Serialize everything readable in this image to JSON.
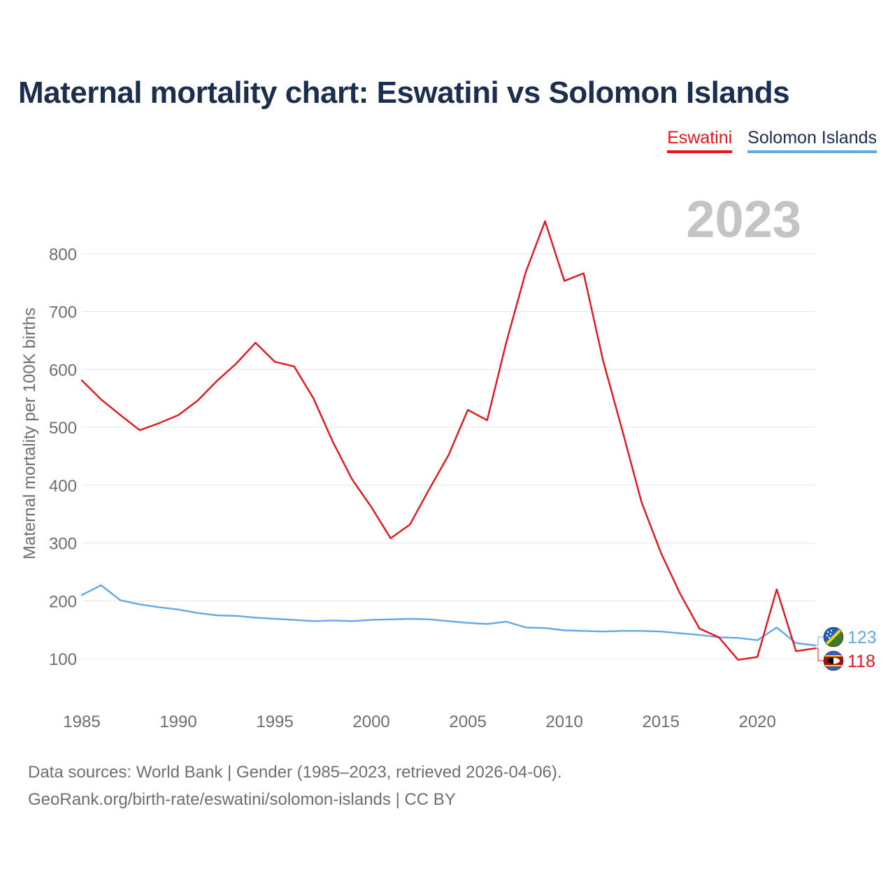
{
  "title": "Maternal mortality chart: Eswatini vs Solomon Islands",
  "legend": {
    "eswatini": "Eswatini",
    "solomon": "Solomon Islands"
  },
  "year_label": "2023",
  "footer": {
    "line1": "Data sources: World Bank | Gender (1985–2023, retrieved 2026-04-06).",
    "line2": "GeoRank.org/birth-rate/eswatini/solomon-islands | CC BY"
  },
  "colors": {
    "eswatini": "#e8141c",
    "solomon": "#63a8e6",
    "title": "#1b2e4e",
    "grid": "#e5e5e5",
    "axis_text": "#6e6e6e",
    "year_label": "#c4c4c4"
  },
  "chart_data": {
    "type": "line",
    "ylabel": "Maternal mortality per 100K births",
    "xlabel": "",
    "xlim": [
      1985,
      2023
    ],
    "ylim": [
      30,
      900
    ],
    "x_ticks": [
      1985,
      1990,
      1995,
      2000,
      2005,
      2010,
      2015,
      2020
    ],
    "y_ticks": [
      100,
      200,
      300,
      400,
      500,
      600,
      700,
      800
    ],
    "x": [
      1985,
      1986,
      1987,
      1988,
      1989,
      1990,
      1991,
      1992,
      1993,
      1994,
      1995,
      1996,
      1997,
      1998,
      1999,
      2000,
      2001,
      2002,
      2003,
      2004,
      2005,
      2006,
      2007,
      2008,
      2009,
      2010,
      2011,
      2012,
      2013,
      2014,
      2015,
      2016,
      2017,
      2018,
      2019,
      2020,
      2021,
      2022,
      2023
    ],
    "series": [
      {
        "name": "Eswatini",
        "color": "#e8141c",
        "end_label": "118",
        "values": [
          581,
          548,
          521,
          495,
          507,
          521,
          546,
          580,
          610,
          646,
          613,
          605,
          550,
          475,
          410,
          362,
          308,
          332,
          393,
          452,
          530,
          512,
          648,
          768,
          856,
          753,
          766,
          616,
          495,
          370,
          283,
          212,
          152,
          137,
          98,
          103,
          220,
          113,
          118
        ]
      },
      {
        "name": "Solomon Islands",
        "color": "#63a8e6",
        "end_label": "123",
        "values": [
          210,
          227,
          201,
          194,
          189,
          185,
          179,
          175,
          174,
          171,
          169,
          167,
          165,
          166,
          165,
          167,
          168,
          169,
          168,
          165,
          162,
          160,
          164,
          154,
          153,
          149,
          148,
          147,
          148,
          148,
          147,
          144,
          141,
          137,
          136,
          132,
          154,
          127,
          123
        ]
      }
    ]
  }
}
